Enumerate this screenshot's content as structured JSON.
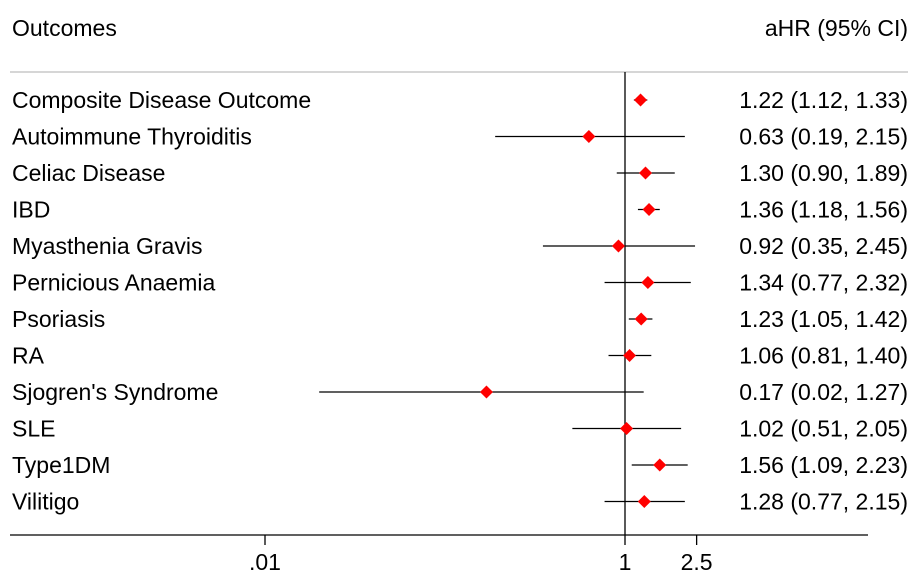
{
  "header": {
    "left_label": "Outcomes",
    "right_label": "aHR (95% CI)"
  },
  "chart_data": {
    "type": "scatter",
    "subtype": "forest-plot",
    "x_scale": "log",
    "reference_line": 1,
    "x_ticks": [
      {
        "value": 0.01,
        "label": ".01"
      },
      {
        "value": 1,
        "label": "1"
      },
      {
        "value": 2.5,
        "label": "2.5"
      }
    ],
    "marker_color": "#ff0000",
    "rows": [
      {
        "label": "Composite Disease Outcome",
        "estimate": 1.22,
        "lower": 1.12,
        "upper": 1.33,
        "text": "1.22 (1.12, 1.33)"
      },
      {
        "label": "Autoimmune Thyroiditis",
        "estimate": 0.63,
        "lower": 0.19,
        "upper": 2.15,
        "text": "0.63 (0.19, 2.15)"
      },
      {
        "label": "Celiac Disease",
        "estimate": 1.3,
        "lower": 0.9,
        "upper": 1.89,
        "text": "1.30 (0.90, 1.89)"
      },
      {
        "label": "IBD",
        "estimate": 1.36,
        "lower": 1.18,
        "upper": 1.56,
        "text": "1.36 (1.18, 1.56)"
      },
      {
        "label": "Myasthenia Gravis",
        "estimate": 0.92,
        "lower": 0.35,
        "upper": 2.45,
        "text": "0.92 (0.35, 2.45)"
      },
      {
        "label": "Pernicious Anaemia",
        "estimate": 1.34,
        "lower": 0.77,
        "upper": 2.32,
        "text": "1.34 (0.77, 2.32)"
      },
      {
        "label": "Psoriasis",
        "estimate": 1.23,
        "lower": 1.05,
        "upper": 1.42,
        "text": "1.23 (1.05, 1.42)"
      },
      {
        "label": "RA",
        "estimate": 1.06,
        "lower": 0.81,
        "upper": 1.4,
        "text": "1.06 (0.81, 1.40)"
      },
      {
        "label": "Sjogren's Syndrome",
        "estimate": 0.17,
        "lower": 0.02,
        "upper": 1.27,
        "text": "0.17 (0.02, 1.27)"
      },
      {
        "label": "SLE",
        "estimate": 1.02,
        "lower": 0.51,
        "upper": 2.05,
        "text": "1.02 (0.51, 2.05)"
      },
      {
        "label": "Type1DM",
        "estimate": 1.56,
        "lower": 1.09,
        "upper": 2.23,
        "text": "1.56 (1.09, 2.23)"
      },
      {
        "label": "Vilitigo",
        "estimate": 1.28,
        "lower": 0.77,
        "upper": 2.15,
        "text": "1.28 (0.77, 2.15)"
      }
    ]
  }
}
